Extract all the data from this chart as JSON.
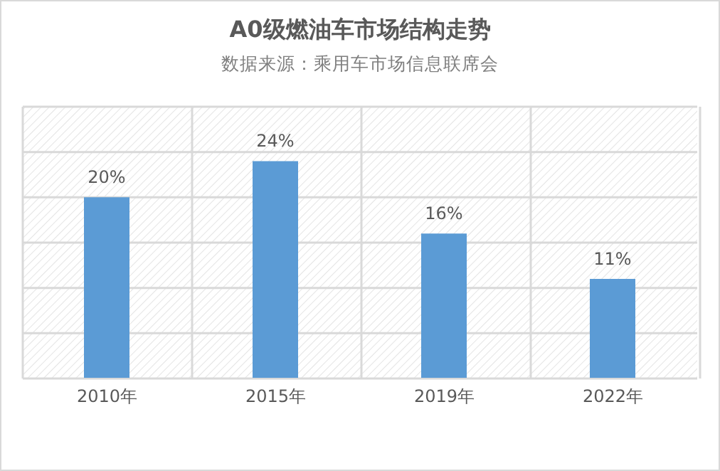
{
  "chart_data": {
    "type": "bar",
    "title": "A0级燃油车市场结构走势",
    "subtitle": "数据来源：乘用车市场信息联席会",
    "categories": [
      "2010年",
      "2015年",
      "2019年",
      "2022年"
    ],
    "values": [
      20,
      24,
      16,
      11
    ],
    "color": "#5b9bd5",
    "value_labels": [
      "20%",
      "24%",
      "16%",
      "11%"
    ],
    "ylim": [
      0,
      30
    ],
    "yticks": [
      {
        "value": 0,
        "label": null
      },
      {
        "value": 5,
        "label": null
      },
      {
        "value": 10,
        "label": null
      },
      {
        "value": 15,
        "label": null
      },
      {
        "value": 20,
        "label": null
      },
      {
        "value": 25,
        "label": null
      },
      {
        "value": 30,
        "label": null
      }
    ],
    "tick_labels": "x",
    "grid": true,
    "legend": false
  }
}
